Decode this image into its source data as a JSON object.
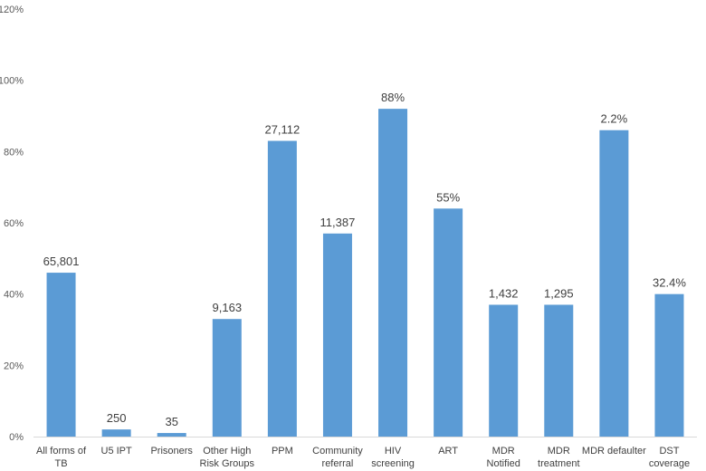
{
  "chart_data": {
    "type": "bar",
    "categories": [
      [
        "All forms of",
        "TB"
      ],
      [
        "U5 IPT"
      ],
      [
        "Prisoners"
      ],
      [
        "Other High",
        "Risk Groups"
      ],
      [
        "PPM"
      ],
      [
        "Community",
        "referral"
      ],
      [
        "HIV",
        "screening"
      ],
      [
        "ART"
      ],
      [
        "MDR",
        "Notified"
      ],
      [
        "MDR",
        "treatment"
      ],
      [
        "MDR defaulter"
      ],
      [
        "DST",
        "coverage"
      ]
    ],
    "values": [
      46,
      2,
      1,
      33,
      83,
      57,
      92,
      64,
      37,
      37,
      86,
      40
    ],
    "data_labels": [
      "65,801",
      "250",
      "35",
      "9,163",
      "27,112",
      "11,387",
      "88%",
      "55%",
      "1,432",
      "1,295",
      "2.2%",
      "32.4%"
    ],
    "ylim": [
      0,
      120
    ],
    "yticks": [
      "0%",
      "20%",
      "40%",
      "60%",
      "80%",
      "100%",
      "120%"
    ],
    "ytick_values": [
      0,
      20,
      40,
      60,
      80,
      100,
      120
    ],
    "bar_color": "#5b9bd5",
    "grid": false,
    "legend": false,
    "title": "",
    "xlabel": "",
    "ylabel": ""
  }
}
